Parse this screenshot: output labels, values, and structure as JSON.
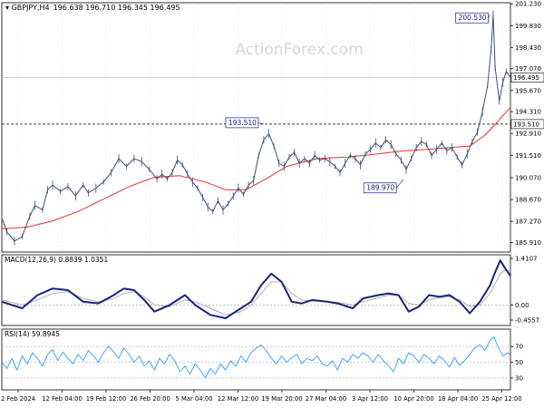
{
  "chart_data": {
    "type": "line",
    "header": {
      "symbol_timeframe": "GBPJPY,H4",
      "ohlc": "196.638 196.710 196.345 196.495"
    },
    "watermark": "ActionForex.com",
    "x_labels": [
      "2 Feb 2024",
      "12 Feb 04:00",
      "19 Feb 12:00",
      "26 Feb 20:00",
      "5 Mar 04:00",
      "12 Mar 12:00",
      "19 Mar 20:00",
      "27 Mar 04:00",
      "3 Apr 12:00",
      "10 Apr 20:00",
      "18 Apr 04:00",
      "25 Apr 12:00"
    ],
    "price_panel": {
      "ylim": [
        185.3,
        201.3
      ],
      "y_ticks": [
        {
          "v": 201.23,
          "label": "201.230"
        },
        {
          "v": 199.83,
          "label": "199.830"
        },
        {
          "v": 198.43,
          "label": "198.430"
        },
        {
          "v": 197.07,
          "label": "197.070"
        },
        {
          "v": 195.67,
          "label": "195.670"
        },
        {
          "v": 194.31,
          "label": "194.310"
        },
        {
          "v": 192.91,
          "label": "192.910"
        },
        {
          "v": 191.51,
          "label": "191.510"
        },
        {
          "v": 190.07,
          "label": "190.070"
        },
        {
          "v": 188.67,
          "label": "188.670"
        },
        {
          "v": 187.27,
          "label": "187.270"
        },
        {
          "v": 185.91,
          "label": "185.910"
        }
      ],
      "level_line": {
        "v": 193.51,
        "label": "193.510"
      },
      "current_line": {
        "v": 196.495,
        "label": "196.495"
      },
      "annotations": [
        {
          "label": "200.530",
          "v": 200.53,
          "t": 0.96
        },
        {
          "label": "193.510",
          "v": 193.51,
          "t": 0.515
        },
        {
          "label": "189.970",
          "v": 189.97,
          "t": 0.79
        }
      ],
      "price": [
        [
          0.0,
          187.5
        ],
        [
          0.01,
          186.6
        ],
        [
          0.025,
          186.0
        ],
        [
          0.04,
          186.3
        ],
        [
          0.055,
          187.6
        ],
        [
          0.065,
          188.3
        ],
        [
          0.08,
          188.0
        ],
        [
          0.09,
          189.3
        ],
        [
          0.1,
          189.6
        ],
        [
          0.115,
          189.2
        ],
        [
          0.13,
          189.5
        ],
        [
          0.145,
          188.9
        ],
        [
          0.16,
          189.6
        ],
        [
          0.17,
          189.1
        ],
        [
          0.185,
          189.4
        ],
        [
          0.2,
          189.8
        ],
        [
          0.215,
          190.4
        ],
        [
          0.23,
          191.3
        ],
        [
          0.245,
          190.8
        ],
        [
          0.26,
          191.3
        ],
        [
          0.275,
          191.1
        ],
        [
          0.29,
          190.6
        ],
        [
          0.305,
          190.0
        ],
        [
          0.315,
          190.3
        ],
        [
          0.325,
          190.0
        ],
        [
          0.335,
          190.4
        ],
        [
          0.345,
          191.2
        ],
        [
          0.355,
          190.9
        ],
        [
          0.365,
          190.3
        ],
        [
          0.375,
          189.8
        ],
        [
          0.385,
          189.4
        ],
        [
          0.395,
          188.8
        ],
        [
          0.405,
          188.2
        ],
        [
          0.415,
          187.9
        ],
        [
          0.425,
          188.6
        ],
        [
          0.435,
          188.0
        ],
        [
          0.445,
          188.4
        ],
        [
          0.455,
          188.9
        ],
        [
          0.465,
          189.4
        ],
        [
          0.475,
          189.0
        ],
        [
          0.485,
          189.6
        ],
        [
          0.495,
          189.9
        ],
        [
          0.505,
          191.5
        ],
        [
          0.515,
          192.5
        ],
        [
          0.525,
          192.9
        ],
        [
          0.535,
          192.1
        ],
        [
          0.545,
          191.0
        ],
        [
          0.555,
          190.8
        ],
        [
          0.565,
          191.4
        ],
        [
          0.575,
          191.7
        ],
        [
          0.585,
          191.0
        ],
        [
          0.595,
          191.3
        ],
        [
          0.605,
          191.0
        ],
        [
          0.615,
          191.5
        ],
        [
          0.625,
          191.2
        ],
        [
          0.635,
          191.3
        ],
        [
          0.645,
          191.1
        ],
        [
          0.655,
          190.8
        ],
        [
          0.665,
          190.4
        ],
        [
          0.675,
          191.0
        ],
        [
          0.685,
          191.5
        ],
        [
          0.695,
          191.3
        ],
        [
          0.705,
          190.9
        ],
        [
          0.715,
          191.6
        ],
        [
          0.725,
          191.9
        ],
        [
          0.735,
          192.3
        ],
        [
          0.745,
          192.0
        ],
        [
          0.755,
          192.5
        ],
        [
          0.765,
          192.2
        ],
        [
          0.775,
          191.6
        ],
        [
          0.785,
          191.2
        ],
        [
          0.795,
          190.6
        ],
        [
          0.805,
          191.3
        ],
        [
          0.815,
          192.0
        ],
        [
          0.825,
          192.4
        ],
        [
          0.835,
          192.2
        ],
        [
          0.845,
          191.5
        ],
        [
          0.855,
          191.9
        ],
        [
          0.865,
          192.3
        ],
        [
          0.875,
          191.8
        ],
        [
          0.885,
          192.0
        ],
        [
          0.895,
          191.4
        ],
        [
          0.905,
          190.9
        ],
        [
          0.915,
          191.6
        ],
        [
          0.925,
          192.4
        ],
        [
          0.935,
          193.0
        ],
        [
          0.945,
          194.3
        ],
        [
          0.955,
          196.0
        ],
        [
          0.962,
          198.3
        ],
        [
          0.966,
          200.5
        ],
        [
          0.97,
          197.1
        ],
        [
          0.978,
          195.0
        ],
        [
          0.985,
          196.2
        ],
        [
          0.992,
          196.9
        ],
        [
          1.0,
          196.5
        ]
      ],
      "ma": [
        [
          0.0,
          186.8
        ],
        [
          0.05,
          186.9
        ],
        [
          0.1,
          187.3
        ],
        [
          0.15,
          187.9
        ],
        [
          0.2,
          188.7
        ],
        [
          0.25,
          189.5
        ],
        [
          0.3,
          190.1
        ],
        [
          0.35,
          190.2
        ],
        [
          0.4,
          189.8
        ],
        [
          0.44,
          189.3
        ],
        [
          0.48,
          189.3
        ],
        [
          0.52,
          190.0
        ],
        [
          0.56,
          190.8
        ],
        [
          0.62,
          191.3
        ],
        [
          0.68,
          191.4
        ],
        [
          0.74,
          191.6
        ],
        [
          0.79,
          191.8
        ],
        [
          0.84,
          191.9
        ],
        [
          0.88,
          192.0
        ],
        [
          0.92,
          192.1
        ],
        [
          0.95,
          192.8
        ],
        [
          0.97,
          193.5
        ],
        [
          1.0,
          194.6
        ]
      ]
    },
    "macd_panel": {
      "label": "MACD(12,26,9) 0.8839 1.0351",
      "ylim": [
        -0.62,
        1.52
      ],
      "y_ticks": [
        {
          "v": 1.4107,
          "label": "1.4107"
        },
        {
          "v": 0.0,
          "label": "0.00"
        },
        {
          "v": -0.4557,
          "label": "-0.4557"
        }
      ],
      "macd": [
        [
          0.0,
          0.1
        ],
        [
          0.04,
          -0.1
        ],
        [
          0.07,
          0.3
        ],
        [
          0.1,
          0.5
        ],
        [
          0.13,
          0.45
        ],
        [
          0.16,
          0.1
        ],
        [
          0.19,
          0.05
        ],
        [
          0.22,
          0.3
        ],
        [
          0.24,
          0.5
        ],
        [
          0.26,
          0.45
        ],
        [
          0.28,
          0.15
        ],
        [
          0.3,
          -0.2
        ],
        [
          0.33,
          0.0
        ],
        [
          0.36,
          0.3
        ],
        [
          0.38,
          0.0
        ],
        [
          0.41,
          -0.3
        ],
        [
          0.44,
          -0.4
        ],
        [
          0.47,
          -0.1
        ],
        [
          0.49,
          0.1
        ],
        [
          0.51,
          0.6
        ],
        [
          0.53,
          0.95
        ],
        [
          0.55,
          0.7
        ],
        [
          0.57,
          0.1
        ],
        [
          0.59,
          0.05
        ],
        [
          0.61,
          0.15
        ],
        [
          0.64,
          0.1
        ],
        [
          0.66,
          0.05
        ],
        [
          0.69,
          -0.1
        ],
        [
          0.71,
          0.2
        ],
        [
          0.74,
          0.3
        ],
        [
          0.76,
          0.35
        ],
        [
          0.78,
          0.3
        ],
        [
          0.8,
          -0.2
        ],
        [
          0.82,
          -0.05
        ],
        [
          0.84,
          0.3
        ],
        [
          0.86,
          0.25
        ],
        [
          0.88,
          0.3
        ],
        [
          0.9,
          0.1
        ],
        [
          0.92,
          -0.25
        ],
        [
          0.94,
          0.1
        ],
        [
          0.96,
          0.6
        ],
        [
          0.97,
          1.0
        ],
        [
          0.98,
          1.35
        ],
        [
          0.99,
          1.1
        ],
        [
          1.0,
          0.88
        ]
      ],
      "signal": [
        [
          0.0,
          0.15
        ],
        [
          0.04,
          0.0
        ],
        [
          0.07,
          0.15
        ],
        [
          0.1,
          0.35
        ],
        [
          0.13,
          0.4
        ],
        [
          0.16,
          0.2
        ],
        [
          0.19,
          0.1
        ],
        [
          0.22,
          0.2
        ],
        [
          0.24,
          0.35
        ],
        [
          0.26,
          0.4
        ],
        [
          0.28,
          0.25
        ],
        [
          0.3,
          0.0
        ],
        [
          0.33,
          -0.05
        ],
        [
          0.36,
          0.15
        ],
        [
          0.38,
          0.1
        ],
        [
          0.41,
          -0.1
        ],
        [
          0.44,
          -0.3
        ],
        [
          0.47,
          -0.2
        ],
        [
          0.49,
          0.0
        ],
        [
          0.51,
          0.35
        ],
        [
          0.53,
          0.7
        ],
        [
          0.55,
          0.7
        ],
        [
          0.57,
          0.35
        ],
        [
          0.59,
          0.15
        ],
        [
          0.61,
          0.12
        ],
        [
          0.64,
          0.1
        ],
        [
          0.66,
          0.08
        ],
        [
          0.69,
          0.0
        ],
        [
          0.71,
          0.1
        ],
        [
          0.74,
          0.22
        ],
        [
          0.76,
          0.3
        ],
        [
          0.78,
          0.3
        ],
        [
          0.8,
          0.05
        ],
        [
          0.82,
          0.0
        ],
        [
          0.84,
          0.15
        ],
        [
          0.86,
          0.22
        ],
        [
          0.88,
          0.25
        ],
        [
          0.9,
          0.15
        ],
        [
          0.92,
          -0.05
        ],
        [
          0.94,
          0.0
        ],
        [
          0.96,
          0.35
        ],
        [
          0.97,
          0.65
        ],
        [
          0.98,
          0.95
        ],
        [
          0.99,
          1.05
        ],
        [
          1.0,
          1.035
        ]
      ]
    },
    "rsi_panel": {
      "label": "RSI(14) 59.8945",
      "ylim": [
        15,
        92
      ],
      "y_ticks": [
        {
          "v": 70,
          "label": "70"
        },
        {
          "v": 50,
          "label": "50"
        },
        {
          "v": 30,
          "label": "30"
        }
      ],
      "rsi": [
        [
          0.0,
          50
        ],
        [
          0.01,
          42
        ],
        [
          0.02,
          55
        ],
        [
          0.03,
          40
        ],
        [
          0.04,
          58
        ],
        [
          0.05,
          48
        ],
        [
          0.06,
          62
        ],
        [
          0.07,
          55
        ],
        [
          0.08,
          45
        ],
        [
          0.09,
          60
        ],
        [
          0.1,
          66
        ],
        [
          0.11,
          52
        ],
        [
          0.12,
          63
        ],
        [
          0.13,
          55
        ],
        [
          0.14,
          48
        ],
        [
          0.15,
          60
        ],
        [
          0.16,
          52
        ],
        [
          0.17,
          65
        ],
        [
          0.18,
          58
        ],
        [
          0.19,
          50
        ],
        [
          0.2,
          62
        ],
        [
          0.21,
          70
        ],
        [
          0.22,
          63
        ],
        [
          0.23,
          55
        ],
        [
          0.24,
          68
        ],
        [
          0.25,
          60
        ],
        [
          0.26,
          50
        ],
        [
          0.27,
          58
        ],
        [
          0.28,
          45
        ],
        [
          0.29,
          52
        ],
        [
          0.3,
          40
        ],
        [
          0.31,
          55
        ],
        [
          0.32,
          48
        ],
        [
          0.33,
          60
        ],
        [
          0.34,
          52
        ],
        [
          0.35,
          38
        ],
        [
          0.36,
          45
        ],
        [
          0.37,
          35
        ],
        [
          0.38,
          48
        ],
        [
          0.39,
          40
        ],
        [
          0.4,
          30
        ],
        [
          0.41,
          42
        ],
        [
          0.42,
          35
        ],
        [
          0.43,
          48
        ],
        [
          0.44,
          40
        ],
        [
          0.45,
          52
        ],
        [
          0.46,
          45
        ],
        [
          0.47,
          58
        ],
        [
          0.48,
          50
        ],
        [
          0.49,
          62
        ],
        [
          0.5,
          68
        ],
        [
          0.51,
          72
        ],
        [
          0.52,
          65
        ],
        [
          0.53,
          55
        ],
        [
          0.54,
          48
        ],
        [
          0.55,
          58
        ],
        [
          0.56,
          50
        ],
        [
          0.57,
          56
        ],
        [
          0.58,
          60
        ],
        [
          0.59,
          48
        ],
        [
          0.6,
          55
        ],
        [
          0.61,
          52
        ],
        [
          0.62,
          58
        ],
        [
          0.63,
          48
        ],
        [
          0.64,
          45
        ],
        [
          0.65,
          52
        ],
        [
          0.66,
          40
        ],
        [
          0.67,
          55
        ],
        [
          0.68,
          50
        ],
        [
          0.69,
          60
        ],
        [
          0.7,
          55
        ],
        [
          0.71,
          62
        ],
        [
          0.72,
          58
        ],
        [
          0.73,
          50
        ],
        [
          0.74,
          60
        ],
        [
          0.75,
          52
        ],
        [
          0.76,
          46
        ],
        [
          0.77,
          38
        ],
        [
          0.78,
          55
        ],
        [
          0.79,
          48
        ],
        [
          0.8,
          62
        ],
        [
          0.81,
          58
        ],
        [
          0.82,
          50
        ],
        [
          0.83,
          60
        ],
        [
          0.84,
          55
        ],
        [
          0.85,
          48
        ],
        [
          0.86,
          58
        ],
        [
          0.87,
          52
        ],
        [
          0.88,
          44
        ],
        [
          0.89,
          56
        ],
        [
          0.9,
          46
        ],
        [
          0.91,
          52
        ],
        [
          0.92,
          60
        ],
        [
          0.93,
          68
        ],
        [
          0.94,
          72
        ],
        [
          0.95,
          65
        ],
        [
          0.96,
          78
        ],
        [
          0.968,
          82
        ],
        [
          0.975,
          70
        ],
        [
          0.985,
          58
        ],
        [
          0.995,
          62
        ],
        [
          1.0,
          60
        ]
      ]
    },
    "colors": {
      "price_line": "#3f4f73",
      "ma_line": "#e23232",
      "macd_line": "#1a237e",
      "signal_line": "#b0b0b0",
      "rsi_line": "#1e90ff",
      "grid": "#c8c8c8"
    }
  }
}
